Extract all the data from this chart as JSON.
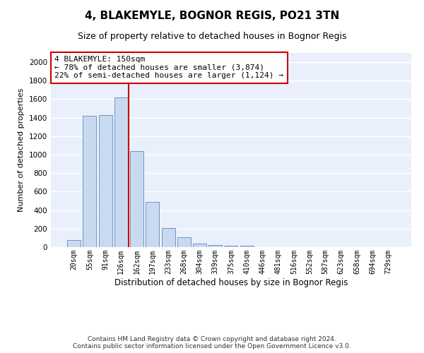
{
  "title": "4, BLAKEMYLE, BOGNOR REGIS, PO21 3TN",
  "subtitle": "Size of property relative to detached houses in Bognor Regis",
  "xlabel": "Distribution of detached houses by size in Bognor Regis",
  "ylabel": "Number of detached properties",
  "categories": [
    "20sqm",
    "55sqm",
    "91sqm",
    "126sqm",
    "162sqm",
    "197sqm",
    "233sqm",
    "268sqm",
    "304sqm",
    "339sqm",
    "375sqm",
    "410sqm",
    "446sqm",
    "481sqm",
    "516sqm",
    "552sqm",
    "587sqm",
    "623sqm",
    "658sqm",
    "694sqm",
    "729sqm"
  ],
  "values": [
    80,
    1420,
    1430,
    1620,
    1040,
    490,
    205,
    105,
    40,
    25,
    18,
    12,
    0,
    0,
    0,
    0,
    0,
    0,
    0,
    0,
    0
  ],
  "bar_color": "#c9d9ef",
  "bar_edge_color": "#5a8ac6",
  "background_color": "#eaf0fb",
  "grid_color": "#ffffff",
  "annotation_text": "4 BLAKEMYLE: 150sqm\n← 78% of detached houses are smaller (3,874)\n22% of semi-detached houses are larger (1,124) →",
  "annotation_box_color": "#ffffff",
  "annotation_box_edge": "#cc0000",
  "vline_color": "#cc0000",
  "ylim": [
    0,
    2100
  ],
  "yticks": [
    0,
    200,
    400,
    600,
    800,
    1000,
    1200,
    1400,
    1600,
    1800,
    2000
  ],
  "footer": "Contains HM Land Registry data © Crown copyright and database right 2024.\nContains public sector information licensed under the Open Government Licence v3.0.",
  "title_fontsize": 11,
  "subtitle_fontsize": 9,
  "annotation_fontsize": 8,
  "footer_fontsize": 6.5,
  "ylabel_fontsize": 8,
  "xlabel_fontsize": 8.5,
  "tick_fontsize": 7
}
